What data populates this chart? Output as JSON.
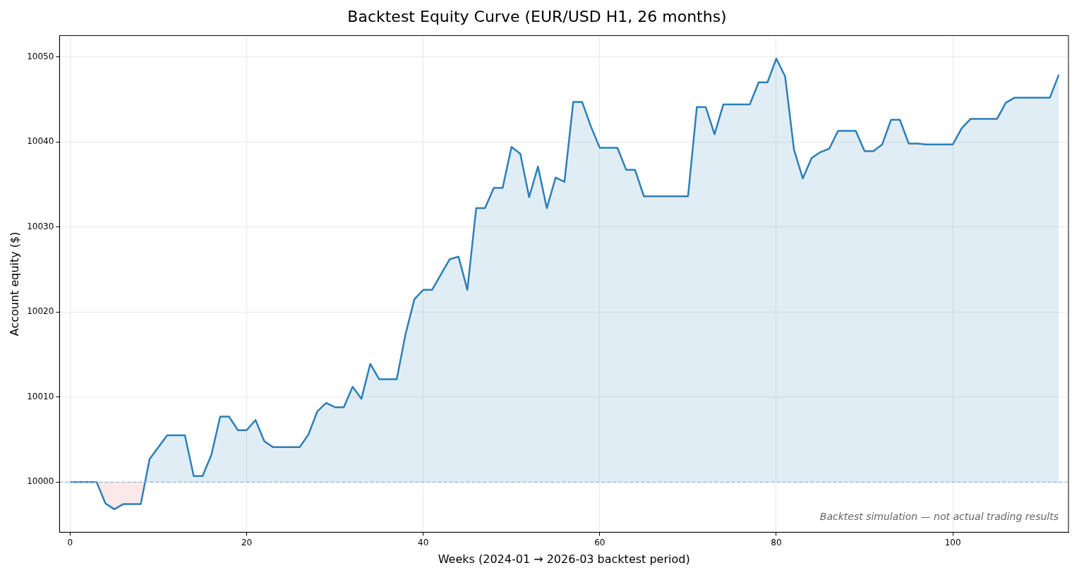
{
  "chart_data": {
    "type": "area",
    "title": "Backtest Equity Curve (EUR/USD H1, 26 months)",
    "xlabel": "Weeks (2024-01 → 2026-03 backtest period)",
    "ylabel": "Account equity ($)",
    "x": [
      0,
      1,
      2,
      3,
      4,
      5,
      6,
      7,
      8,
      9,
      10,
      11,
      12,
      13,
      14,
      15,
      16,
      17,
      18,
      19,
      20,
      21,
      22,
      23,
      24,
      25,
      26,
      27,
      28,
      29,
      30,
      31,
      32,
      33,
      34,
      35,
      36,
      37,
      38,
      39,
      40,
      41,
      42,
      43,
      44,
      45,
      46,
      47,
      48,
      49,
      50,
      51,
      52,
      53,
      54,
      55,
      56,
      57,
      58,
      59,
      60,
      61,
      62,
      63,
      64,
      65,
      66,
      67,
      68,
      69,
      70,
      71,
      72,
      73,
      74,
      75,
      76,
      77,
      78,
      79,
      80,
      81,
      82,
      83,
      84,
      85,
      86,
      87,
      88,
      89,
      90,
      91,
      92,
      93,
      94,
      95,
      96,
      97,
      98,
      99,
      100,
      101,
      102,
      103,
      104,
      105,
      106,
      107,
      108,
      109,
      110,
      111,
      112
    ],
    "series": [
      {
        "color": "#2c7fb8",
        "values": [
          10000,
          10000,
          10000,
          10000,
          9997.5,
          9996.8,
          9997.4,
          9997.4,
          9997.4,
          10002.7,
          10004.1,
          10005.5,
          10005.5,
          10005.5,
          10000.7,
          10000.7,
          10003.2,
          10007.7,
          10007.7,
          10006.1,
          10006.1,
          10007.3,
          10004.8,
          10004.1,
          10004.1,
          10004.1,
          10004.1,
          10005.6,
          10008.3,
          10009.3,
          10008.8,
          10008.8,
          10011.2,
          10009.8,
          10013.9,
          10012.1,
          10012.1,
          10012.1,
          10017.4,
          10021.5,
          10022.6,
          10022.6,
          10024.4,
          10026.2,
          10026.5,
          10022.6,
          10032.2,
          10032.2,
          10034.6,
          10034.6,
          10039.4,
          10038.6,
          10033.5,
          10037.1,
          10032.2,
          10035.8,
          10035.3,
          10044.7,
          10044.7,
          10041.8,
          10039.3,
          10039.3,
          10039.3,
          10036.7,
          10036.7,
          10033.6,
          10033.6,
          10033.6,
          10033.6,
          10033.6,
          10033.6,
          10044.1,
          10044.1,
          10040.9,
          10044.4,
          10044.4,
          10044.4,
          10044.4,
          10047.0,
          10047.0,
          10049.8,
          10047.7,
          10039.1,
          10035.7,
          10038.1,
          10038.8,
          10039.2,
          10041.3,
          10041.3,
          10041.3,
          10038.9,
          10038.9,
          10039.7,
          10042.6,
          10042.6,
          10039.8,
          10039.8,
          10039.7,
          10039.7,
          10039.7,
          10039.7,
          10041.6,
          10042.7,
          10042.7,
          10042.7,
          10042.7,
          10044.6,
          10045.2,
          10045.2,
          10045.2,
          10045.2,
          10045.2,
          10047.9
        ]
      }
    ],
    "xlim": [
      -1.2,
      113.1
    ],
    "xticks": [
      0,
      20,
      40,
      60,
      80,
      100
    ],
    "ylim": [
      9994.1,
      10052.5
    ],
    "yticks": [
      10000,
      10010,
      10020,
      10030,
      10040,
      10050
    ],
    "ref_lines": [
      {
        "axis": "y",
        "value": 10000,
        "color": "#8fb8de",
        "line_style": "dashed"
      }
    ],
    "annotations": [
      "Backtest simulation — not actual trading results"
    ],
    "grid": true,
    "legend": false,
    "marker": "none",
    "line_style": "solid"
  }
}
